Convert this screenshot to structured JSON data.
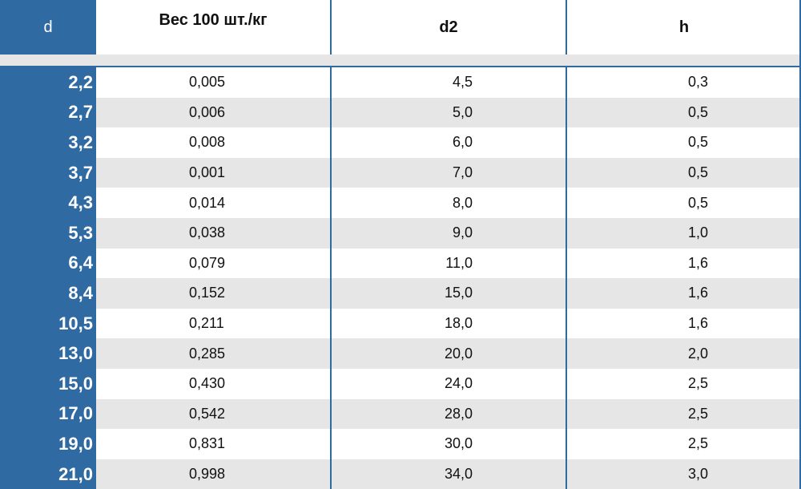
{
  "table": {
    "headers": [
      "d",
      "Вес 100 шт./кг",
      "d2",
      "h"
    ],
    "rows": [
      [
        "2,2",
        "0,005",
        "4,5",
        "0,3"
      ],
      [
        "2,7",
        "0,006",
        "5,0",
        "0,5"
      ],
      [
        "3,2",
        "0,008",
        "6,0",
        "0,5"
      ],
      [
        "3,7",
        "0,001",
        "7,0",
        "0,5"
      ],
      [
        "4,3",
        "0,014",
        "8,0",
        "0,5"
      ],
      [
        "5,3",
        "0,038",
        "9,0",
        "1,0"
      ],
      [
        "6,4",
        "0,079",
        "11,0",
        "1,6"
      ],
      [
        "8,4",
        "0,152",
        "15,0",
        "1,6"
      ],
      [
        "10,5",
        "0,211",
        "18,0",
        "1,6"
      ],
      [
        "13,0",
        "0,285",
        "20,0",
        "2,0"
      ],
      [
        "15,0",
        "0,430",
        "24,0",
        "2,5"
      ],
      [
        "17,0",
        "0,542",
        "28,0",
        "2,5"
      ],
      [
        "19,0",
        "0,831",
        "30,0",
        "2,5"
      ],
      [
        "21,0",
        "0,998",
        "34,0",
        "3,0"
      ]
    ]
  },
  "colors": {
    "header_accent": "#2f6aa3",
    "row_stripe": "#e6e6e6"
  }
}
